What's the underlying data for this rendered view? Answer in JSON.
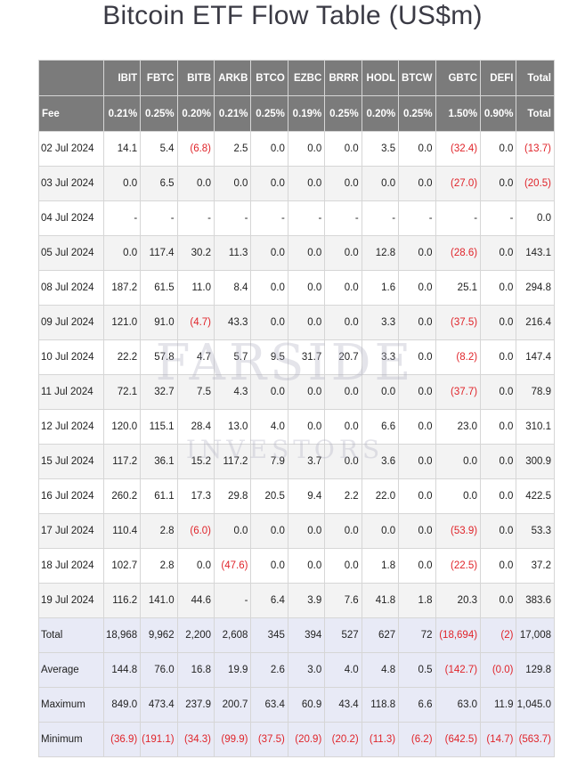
{
  "title": "Bitcoin ETF Flow Table (US$m)",
  "watermark": {
    "line1": "FARSIDE",
    "line2": "INVESTORS"
  },
  "header": {
    "tickers": [
      "IBIT",
      "FBTC",
      "BITB",
      "ARKB",
      "BTCO",
      "EZBC",
      "BRRR",
      "HODL",
      "BTCW",
      "GBTC",
      "DEFI",
      "Total"
    ],
    "fee_label": "Fee",
    "fees": [
      "0.21%",
      "0.25%",
      "0.20%",
      "0.21%",
      "0.25%",
      "0.19%",
      "0.25%",
      "0.20%",
      "0.25%",
      "1.50%",
      "0.90%",
      "Total"
    ]
  },
  "rows": [
    {
      "date": "02 Jul 2024",
      "values": [
        "14.1",
        "5.4",
        "(6.8)",
        "2.5",
        "0.0",
        "0.0",
        "0.0",
        "3.5",
        "0.0",
        "(32.4)",
        "0.0",
        "(13.7)"
      ]
    },
    {
      "date": "03 Jul 2024",
      "values": [
        "0.0",
        "6.5",
        "0.0",
        "0.0",
        "0.0",
        "0.0",
        "0.0",
        "0.0",
        "0.0",
        "(27.0)",
        "0.0",
        "(20.5)"
      ]
    },
    {
      "date": "04 Jul 2024",
      "values": [
        "-",
        "-",
        "-",
        "-",
        "-",
        "-",
        "-",
        "-",
        "-",
        "-",
        "-",
        "0.0"
      ]
    },
    {
      "date": "05 Jul 2024",
      "values": [
        "0.0",
        "117.4",
        "30.2",
        "11.3",
        "0.0",
        "0.0",
        "0.0",
        "12.8",
        "0.0",
        "(28.6)",
        "0.0",
        "143.1"
      ]
    },
    {
      "date": "08 Jul 2024",
      "values": [
        "187.2",
        "61.5",
        "11.0",
        "8.4",
        "0.0",
        "0.0",
        "0.0",
        "1.6",
        "0.0",
        "25.1",
        "0.0",
        "294.8"
      ]
    },
    {
      "date": "09 Jul 2024",
      "values": [
        "121.0",
        "91.0",
        "(4.7)",
        "43.3",
        "0.0",
        "0.0",
        "0.0",
        "3.3",
        "0.0",
        "(37.5)",
        "0.0",
        "216.4"
      ]
    },
    {
      "date": "10 Jul 2024",
      "values": [
        "22.2",
        "57.8",
        "4.7",
        "5.7",
        "9.5",
        "31.7",
        "20.7",
        "3.3",
        "0.0",
        "(8.2)",
        "0.0",
        "147.4"
      ]
    },
    {
      "date": "11 Jul 2024",
      "values": [
        "72.1",
        "32.7",
        "7.5",
        "4.3",
        "0.0",
        "0.0",
        "0.0",
        "0.0",
        "0.0",
        "(37.7)",
        "0.0",
        "78.9"
      ]
    },
    {
      "date": "12 Jul 2024",
      "values": [
        "120.0",
        "115.1",
        "28.4",
        "13.0",
        "4.0",
        "0.0",
        "0.0",
        "6.6",
        "0.0",
        "23.0",
        "0.0",
        "310.1"
      ]
    },
    {
      "date": "15 Jul 2024",
      "values": [
        "117.2",
        "36.1",
        "15.2",
        "117.2",
        "7.9",
        "3.7",
        "0.0",
        "3.6",
        "0.0",
        "0.0",
        "0.0",
        "300.9"
      ]
    },
    {
      "date": "16 Jul 2024",
      "values": [
        "260.2",
        "61.1",
        "17.3",
        "29.8",
        "20.5",
        "9.4",
        "2.2",
        "22.0",
        "0.0",
        "0.0",
        "0.0",
        "422.5"
      ]
    },
    {
      "date": "17 Jul 2024",
      "values": [
        "110.4",
        "2.8",
        "(6.0)",
        "0.0",
        "0.0",
        "0.0",
        "0.0",
        "0.0",
        "0.0",
        "(53.9)",
        "0.0",
        "53.3"
      ]
    },
    {
      "date": "18 Jul 2024",
      "values": [
        "102.7",
        "2.8",
        "0.0",
        "(47.6)",
        "0.0",
        "0.0",
        "0.0",
        "1.8",
        "0.0",
        "(22.5)",
        "0.0",
        "37.2"
      ]
    },
    {
      "date": "19 Jul 2024",
      "values": [
        "116.2",
        "141.0",
        "44.6",
        "-",
        "6.4",
        "3.9",
        "7.6",
        "41.8",
        "1.8",
        "20.3",
        "0.0",
        "383.6"
      ]
    }
  ],
  "summary": [
    {
      "label": "Total",
      "values": [
        "18,968",
        "9,962",
        "2,200",
        "2,608",
        "345",
        "394",
        "527",
        "627",
        "72",
        "(18,694)",
        "(2)",
        "17,008"
      ]
    },
    {
      "label": "Average",
      "values": [
        "144.8",
        "76.0",
        "16.8",
        "19.9",
        "2.6",
        "3.0",
        "4.0",
        "4.8",
        "0.5",
        "(142.7)",
        "(0.0)",
        "129.8"
      ]
    },
    {
      "label": "Maximum",
      "values": [
        "849.0",
        "473.4",
        "237.9",
        "200.7",
        "63.4",
        "60.9",
        "43.4",
        "118.8",
        "6.6",
        "63.0",
        "11.9",
        "1,045.0"
      ]
    },
    {
      "label": "Minimum",
      "values": [
        "(36.9)",
        "(191.1)",
        "(34.3)",
        "(99.9)",
        "(37.5)",
        "(20.9)",
        "(20.2)",
        "(11.3)",
        "(6.2)",
        "(642.5)",
        "(14.7)",
        "(563.7)"
      ]
    }
  ]
}
